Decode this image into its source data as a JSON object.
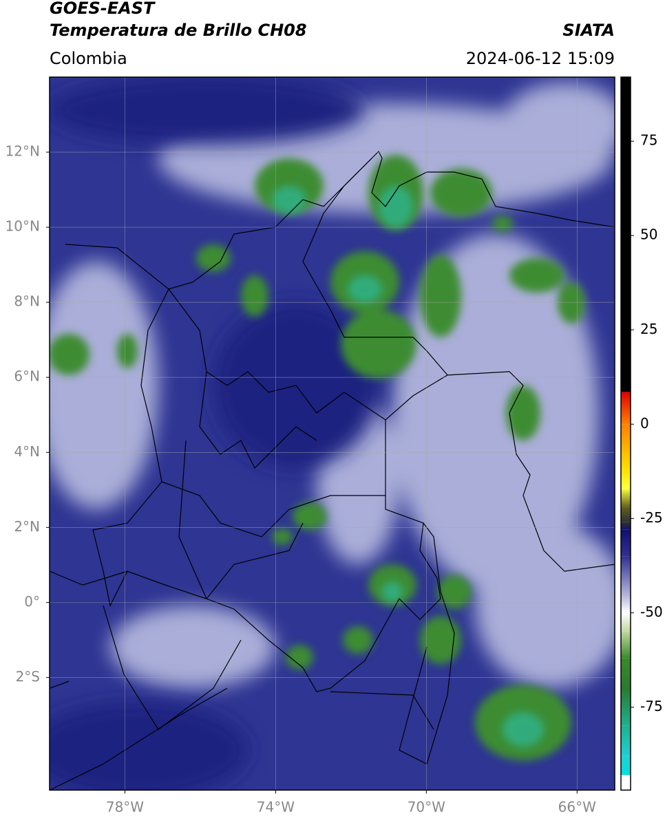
{
  "chart_data": {
    "type": "map",
    "title": "GOES-EAST",
    "subtitle": "Temperatura de Brillo CH08",
    "source": "SIATA",
    "region": "Colombia",
    "timestamp": "2024-06-12 15:09",
    "xlim": [
      -80,
      -65
    ],
    "ylim": [
      -5,
      14
    ],
    "xticks": [
      {
        "value": -78,
        "label": "78°W"
      },
      {
        "value": -74,
        "label": "74°W"
      },
      {
        "value": -70,
        "label": "70°W"
      },
      {
        "value": -66,
        "label": "66°W"
      }
    ],
    "yticks": [
      {
        "value": 12,
        "label": "12°N"
      },
      {
        "value": 10,
        "label": "10°N"
      },
      {
        "value": 8,
        "label": "8°N"
      },
      {
        "value": 6,
        "label": "6°N"
      },
      {
        "value": 4,
        "label": "4°N"
      },
      {
        "value": 2,
        "label": "2°N"
      },
      {
        "value": 0,
        "label": "0°"
      },
      {
        "value": -2,
        "label": "2°S"
      }
    ],
    "grid": true,
    "colorbar": {
      "lim": [
        -97,
        92
      ],
      "ticks": [
        75,
        50,
        25,
        0,
        -25,
        -50,
        -75
      ],
      "stops": [
        {
          "value": 92,
          "color": "#000000"
        },
        {
          "value": 8.5,
          "color": "#000000"
        },
        {
          "value": 8.5,
          "color": "#e00000"
        },
        {
          "value": 0,
          "color": "#ff8000"
        },
        {
          "value": -12,
          "color": "#ffe000"
        },
        {
          "value": -17,
          "color": "#ffff40"
        },
        {
          "value": -22,
          "color": "#606020"
        },
        {
          "value": -26,
          "color": "#303030"
        },
        {
          "value": -28,
          "color": "#101070"
        },
        {
          "value": -35,
          "color": "#303090"
        },
        {
          "value": -45,
          "color": "#b0b0d8"
        },
        {
          "value": -50,
          "color": "#ffffff"
        },
        {
          "value": -55,
          "color": "#c0d8a0"
        },
        {
          "value": -62,
          "color": "#3a8a2a"
        },
        {
          "value": -70,
          "color": "#2a7a30"
        },
        {
          "value": -80,
          "color": "#20b090"
        },
        {
          "value": -88,
          "color": "#20d0d0"
        },
        {
          "value": -93,
          "color": "#00e0e0"
        },
        {
          "value": -93,
          "color": "#ffffff"
        },
        {
          "value": -97,
          "color": "#ffffff"
        }
      ]
    }
  }
}
